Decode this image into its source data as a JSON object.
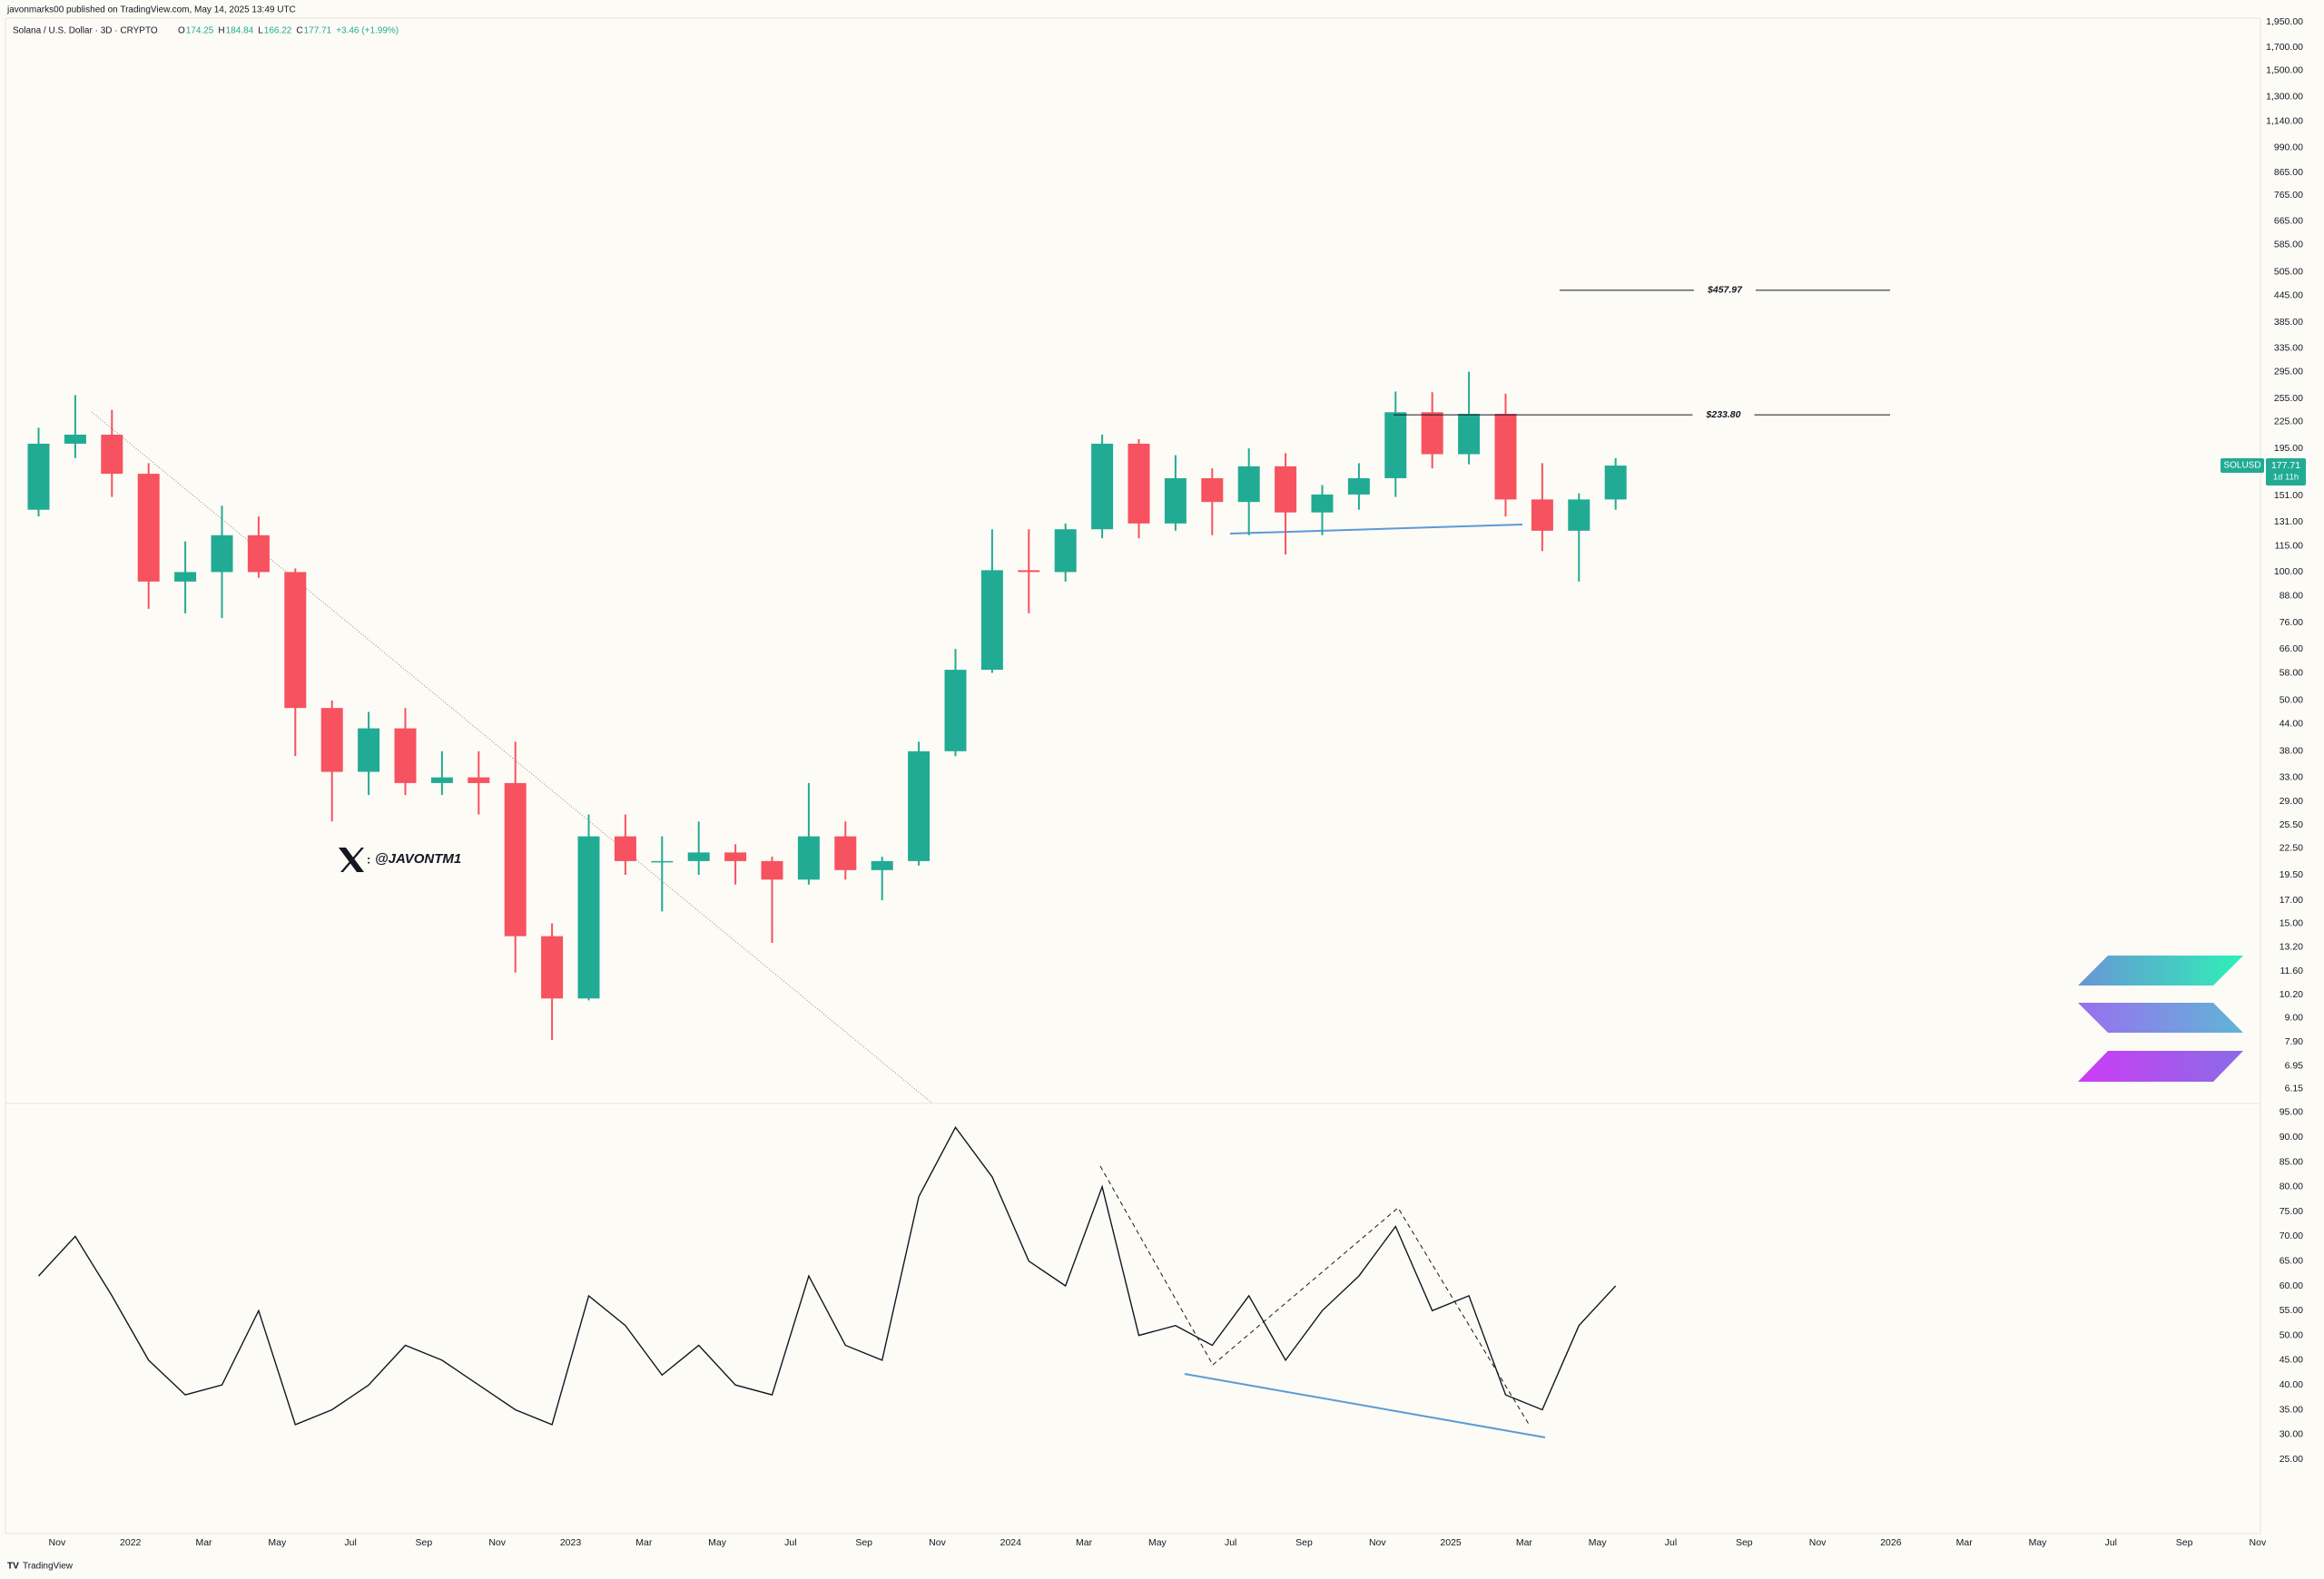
{
  "header": {
    "published": "javonmarks00 published on TradingView.com, May 14, 2025 13:49 UTC",
    "symbol": "Solana / U.S. Dollar · 3D · CRYPTO",
    "ohlc_labels": [
      "O",
      "H",
      "L",
      "C"
    ],
    "ohlc": [
      174.25,
      184.84,
      166.22,
      177.71
    ],
    "change": "+3.46 (+1.99%)"
  },
  "watermark": "@JAVONTM1",
  "price_tag": {
    "ticker": "SOLUSD",
    "countdown": "1d 11h"
  },
  "footer": "TradingView",
  "chart_data": [
    {
      "type": "candlestick",
      "log_scale": true,
      "up_color": "#22ab94",
      "down_color": "#f7525f",
      "x": [
        "2021-10",
        "2021-11",
        "2021-12",
        "2022-01",
        "2022-02",
        "2022-03",
        "2022-04",
        "2022-05",
        "2022-06",
        "2022-07",
        "2022-08",
        "2022-09",
        "2022-10",
        "2022-11",
        "2022-12",
        "2023-01",
        "2023-02",
        "2023-03",
        "2023-04",
        "2023-05",
        "2023-06",
        "2023-07",
        "2023-08",
        "2023-09",
        "2023-10",
        "2023-11",
        "2023-12",
        "2024-01",
        "2024-02",
        "2024-03",
        "2024-04",
        "2024-05",
        "2024-06",
        "2024-07",
        "2024-08",
        "2024-09",
        "2024-10",
        "2024-11",
        "2024-12",
        "2025-01",
        "2025-02",
        "2025-03",
        "2025-04",
        "2025-05"
      ],
      "open": [
        140,
        200,
        210,
        170,
        95,
        100,
        122,
        100,
        48,
        34,
        43,
        32,
        33,
        32,
        14,
        10,
        24,
        21,
        21,
        22,
        21,
        19,
        24,
        20,
        21,
        38,
        59,
        101,
        100,
        126,
        200,
        130,
        166,
        146,
        177,
        138,
        152,
        166,
        237,
        189,
        235,
        148,
        125,
        148
      ],
      "high": [
        218,
        260,
        240,
        180,
        118,
        143,
        135,
        102,
        50,
        47,
        48,
        38,
        38,
        40,
        15,
        27,
        27,
        24,
        26,
        23,
        21.5,
        32,
        26,
        21.5,
        40,
        66,
        126,
        126,
        130,
        210,
        205,
        188,
        175,
        195,
        190,
        160,
        180,
        265,
        264,
        295,
        262,
        180,
        153,
        185
      ],
      "low": [
        135,
        185,
        150,
        82,
        80,
        78,
        97,
        37,
        26,
        30,
        30,
        30,
        27,
        11.5,
        8,
        9.9,
        19.5,
        16,
        19.5,
        18.5,
        13.5,
        18.5,
        19,
        17,
        20.5,
        37,
        58,
        80,
        95,
        120,
        120,
        125,
        122,
        122,
        110,
        122,
        140,
        150,
        175,
        179,
        135,
        112,
        95,
        140
      ],
      "close": [
        200,
        210,
        170,
        95,
        100,
        122,
        100,
        48,
        34,
        43,
        32,
        33,
        32,
        14,
        10,
        24,
        21,
        21,
        22,
        21,
        19,
        24,
        20,
        21,
        38,
        59,
        101,
        100,
        126,
        200,
        130,
        166,
        146,
        177,
        138,
        152,
        166,
        237,
        189,
        235,
        148,
        125,
        148,
        177.71
      ],
      "ylim": [
        5.7,
        2050
      ],
      "yticks": [
        {
          "value": 1950,
          "label": "1,950.00"
        },
        {
          "value": 1700,
          "label": "1,700.00"
        },
        {
          "value": 1500,
          "label": "1,500.00"
        },
        {
          "value": 1300,
          "label": "1,300.00"
        },
        {
          "value": 1140,
          "label": "1,140.00"
        },
        {
          "value": 990,
          "label": "990.00"
        },
        {
          "value": 865,
          "label": "865.00"
        },
        {
          "value": 765,
          "label": "765.00"
        },
        {
          "value": 665,
          "label": "665.00"
        },
        {
          "value": 585,
          "label": "585.00"
        },
        {
          "value": 505,
          "label": "505.00"
        },
        {
          "value": 445,
          "label": "445.00"
        },
        {
          "value": 385,
          "label": "385.00"
        },
        {
          "value": 335,
          "label": "335.00"
        },
        {
          "value": 295,
          "label": "295.00"
        },
        {
          "value": 255,
          "label": "255.00"
        },
        {
          "value": 225,
          "label": "225.00"
        },
        {
          "value": 195,
          "label": "195.00"
        },
        {
          "value": 151,
          "label": "151.00"
        },
        {
          "value": 131,
          "label": "131.00"
        },
        {
          "value": 115,
          "label": "115.00"
        },
        {
          "value": 100,
          "label": "100.00"
        },
        {
          "value": 88,
          "label": "88.00"
        },
        {
          "value": 76,
          "label": "76.00"
        },
        {
          "value": 66,
          "label": "66.00"
        },
        {
          "value": 58,
          "label": "58.00"
        },
        {
          "value": 50,
          "label": "50.00"
        },
        {
          "value": 44,
          "label": "44.00"
        },
        {
          "value": 38,
          "label": "38.00"
        },
        {
          "value": 33,
          "label": "33.00"
        },
        {
          "value": 29,
          "label": "29.00"
        },
        {
          "value": 25.5,
          "label": "25.50"
        },
        {
          "value": 22.5,
          "label": "22.50"
        },
        {
          "value": 19.5,
          "label": "19.50"
        },
        {
          "value": 17,
          "label": "17.00"
        },
        {
          "value": 15,
          "label": "15.00"
        },
        {
          "value": 13.2,
          "label": "13.20"
        },
        {
          "value": 11.6,
          "label": "11.60"
        },
        {
          "value": 10.2,
          "label": "10.20"
        },
        {
          "value": 9,
          "label": "9.00"
        },
        {
          "value": 7.9,
          "label": "7.90"
        },
        {
          "value": 6.95,
          "label": "6.95"
        },
        {
          "value": 6.15,
          "label": "6.15"
        }
      ],
      "levels": [
        {
          "value": 457.97,
          "label": "$457.97"
        },
        {
          "value": 233.8,
          "label": "$233.80"
        }
      ]
    },
    {
      "type": "line",
      "color": "#131722",
      "x": [
        "2021-10",
        "2021-11",
        "2021-12",
        "2022-01",
        "2022-02",
        "2022-03",
        "2022-04",
        "2022-05",
        "2022-06",
        "2022-07",
        "2022-08",
        "2022-09",
        "2022-10",
        "2022-11",
        "2022-12",
        "2023-01",
        "2023-02",
        "2023-03",
        "2023-04",
        "2023-05",
        "2023-06",
        "2023-07",
        "2023-08",
        "2023-09",
        "2023-10",
        "2023-11",
        "2023-12",
        "2024-01",
        "2024-02",
        "2024-03",
        "2024-04",
        "2024-05",
        "2024-06",
        "2024-07",
        "2024-08",
        "2024-09",
        "2024-10",
        "2024-11",
        "2024-12",
        "2025-01",
        "2025-02",
        "2025-03",
        "2025-04",
        "2025-05"
      ],
      "values": [
        62,
        70,
        58,
        45,
        38,
        40,
        55,
        32,
        35,
        40,
        48,
        45,
        40,
        35,
        32,
        58,
        52,
        42,
        48,
        40,
        38,
        62,
        48,
        45,
        78,
        92,
        82,
        65,
        60,
        80,
        50,
        52,
        48,
        58,
        45,
        55,
        62,
        72,
        55,
        58,
        38,
        35,
        52,
        60
      ],
      "ylim": [
        10,
        97
      ],
      "yticks": [
        {
          "value": 95,
          "label": "95.00"
        },
        {
          "value": 90,
          "label": "90.00"
        },
        {
          "value": 85,
          "label": "85.00"
        },
        {
          "value": 80,
          "label": "80.00"
        },
        {
          "value": 75,
          "label": "75.00"
        },
        {
          "value": 70,
          "label": "70.00"
        },
        {
          "value": 65,
          "label": "65.00"
        },
        {
          "value": 60,
          "label": "60.00"
        },
        {
          "value": 55,
          "label": "55.00"
        },
        {
          "value": 50,
          "label": "50.00"
        },
        {
          "value": 45,
          "label": "45.00"
        },
        {
          "value": 40,
          "label": "40.00"
        },
        {
          "value": 35,
          "label": "35.00"
        },
        {
          "value": 30,
          "label": "30.00"
        },
        {
          "value": 25,
          "label": "25.00"
        }
      ],
      "xticks": [
        {
          "value": "2021-11",
          "label": "Nov"
        },
        {
          "value": "2022-01",
          "label": "2022"
        },
        {
          "value": "2022-03",
          "label": "Mar"
        },
        {
          "value": "2022-05",
          "label": "May"
        },
        {
          "value": "2022-07",
          "label": "Jul"
        },
        {
          "value": "2022-09",
          "label": "Sep"
        },
        {
          "value": "2022-11",
          "label": "Nov"
        },
        {
          "value": "2023-01",
          "label": "2023"
        },
        {
          "value": "2023-03",
          "label": "Mar"
        },
        {
          "value": "2023-05",
          "label": "May"
        },
        {
          "value": "2023-07",
          "label": "Jul"
        },
        {
          "value": "2023-09",
          "label": "Sep"
        },
        {
          "value": "2023-11",
          "label": "Nov"
        },
        {
          "value": "2024-01",
          "label": "2024"
        },
        {
          "value": "2024-03",
          "label": "Mar"
        },
        {
          "value": "2024-05",
          "label": "May"
        },
        {
          "value": "2024-07",
          "label": "Jul"
        },
        {
          "value": "2024-09",
          "label": "Sep"
        },
        {
          "value": "2024-11",
          "label": "Nov"
        },
        {
          "value": "2025-01",
          "label": "2025"
        },
        {
          "value": "2025-03",
          "label": "Mar"
        },
        {
          "value": "2025-05",
          "label": "May"
        },
        {
          "value": "2025-07",
          "label": "Jul"
        },
        {
          "value": "2025-09",
          "label": "Sep"
        },
        {
          "value": "2025-11",
          "label": "Nov"
        },
        {
          "value": "2026-01",
          "label": "2026"
        },
        {
          "value": "2026-03",
          "label": "Mar"
        },
        {
          "value": "2026-05",
          "label": "May"
        },
        {
          "value": "2026-07",
          "label": "Jul"
        },
        {
          "value": "2026-09",
          "label": "Sep"
        },
        {
          "value": "2026-11",
          "label": "Nov"
        }
      ]
    }
  ]
}
